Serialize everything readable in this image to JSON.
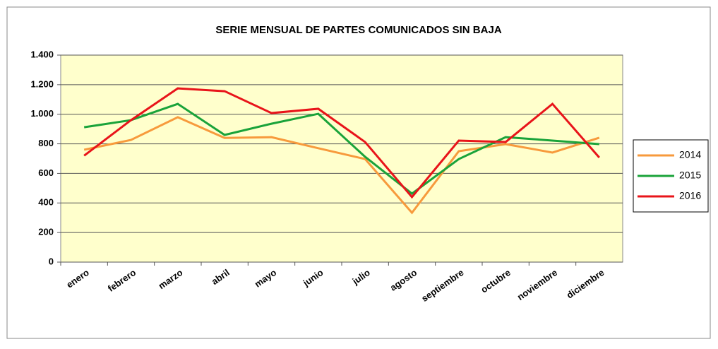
{
  "chart_data": {
    "type": "line",
    "title": "SERIE MENSUAL DE PARTES COMUNICADOS  SIN BAJA",
    "categories": [
      "enero",
      "febrero",
      "marzo",
      "abril",
      "mayo",
      "junio",
      "julio",
      "agosto",
      "septiembre",
      "octubre",
      "noviembre",
      "diciembre"
    ],
    "series": [
      {
        "name": "2014",
        "color": "#f79a3c",
        "values": [
          760,
          826,
          980,
          840,
          845,
          770,
          697,
          334,
          750,
          798,
          741,
          841
        ]
      },
      {
        "name": "2015",
        "color": "#1aa33a",
        "values": [
          912,
          960,
          1070,
          860,
          936,
          1003,
          712,
          463,
          697,
          845,
          822,
          798
        ]
      },
      {
        "name": "2016",
        "color": "#e8141a",
        "values": [
          720,
          960,
          1175,
          1156,
          1008,
          1037,
          812,
          440,
          822,
          812,
          1070,
          707
        ]
      }
    ],
    "ylim": [
      0,
      1400
    ],
    "yticks": [
      0,
      200,
      400,
      600,
      800,
      {
        "value": 1000,
        "label": "1.000"
      },
      {
        "value": 1200,
        "label": "1.200"
      },
      {
        "value": 1400,
        "label": "1.400"
      }
    ],
    "grid": true,
    "legend": "right"
  }
}
